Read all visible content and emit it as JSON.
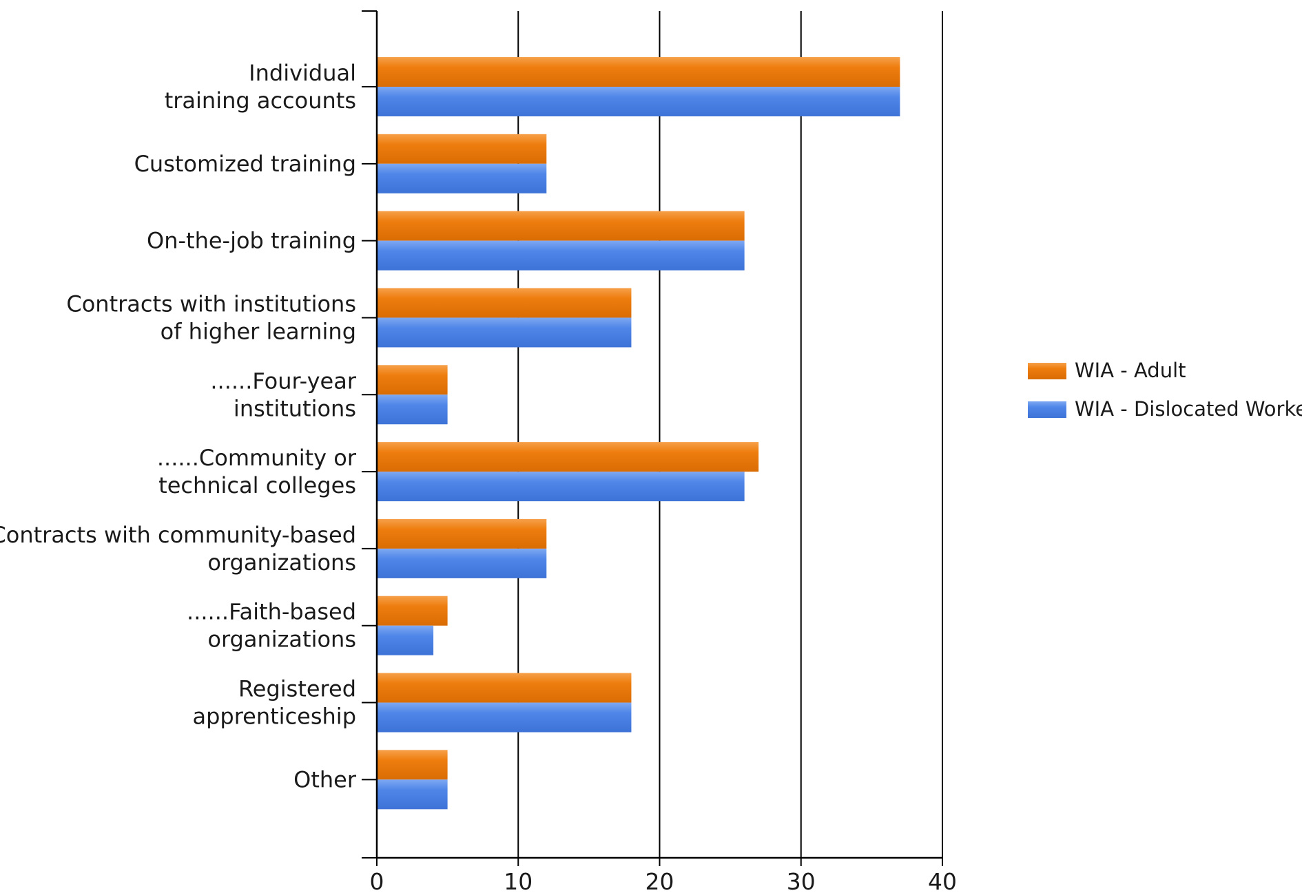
{
  "chart_data": {
    "type": "bar",
    "orientation": "horizontal",
    "categories": [
      [
        "Individual",
        "training accounts"
      ],
      [
        "Customized training"
      ],
      [
        "On-the-job training"
      ],
      [
        "Contracts with institutions",
        "of higher learning"
      ],
      [
        "......Four-year",
        "institutions"
      ],
      [
        "......Community or",
        "technical colleges"
      ],
      [
        "Contracts with community-based",
        "organizations"
      ],
      [
        "......Faith-based",
        "organizations"
      ],
      [
        "Registered",
        "apprenticeship"
      ],
      [
        "Other"
      ]
    ],
    "series": [
      {
        "name": "WIA - Adult",
        "color": "#ee7d0e",
        "values": [
          37,
          12,
          26,
          18,
          5,
          27,
          12,
          5,
          18,
          5
        ]
      },
      {
        "name": "WIA - Dislocated Worker",
        "color": "#4f86e8",
        "values": [
          37,
          12,
          26,
          18,
          5,
          26,
          12,
          4,
          18,
          5
        ]
      }
    ],
    "xlim": [
      0,
      40
    ],
    "xticks": [
      "0",
      "10",
      "20",
      "30",
      "40"
    ],
    "grid": "vertical",
    "legend_position": "right"
  }
}
